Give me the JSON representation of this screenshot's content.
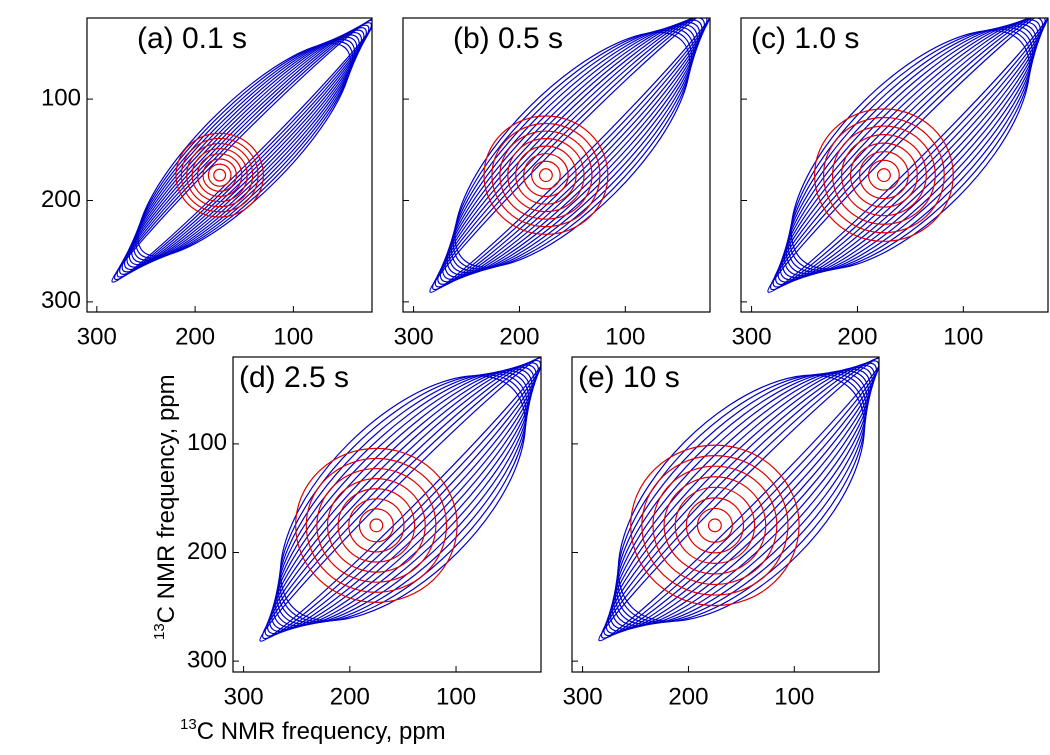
{
  "chart_data": [
    {
      "type": "contour",
      "title": "(a) 0.1 s",
      "xlim": [
        310,
        20
      ],
      "ylim": [
        20,
        310
      ],
      "xticks": [
        300,
        200,
        100
      ],
      "yticks": [
        100,
        200,
        300
      ],
      "ytick_labels": true,
      "colors": [
        "#0000cc",
        "#e00000"
      ]
    },
    {
      "type": "contour",
      "title": "(b) 0.5 s",
      "xlim": [
        310,
        20
      ],
      "ylim": [
        20,
        310
      ],
      "xticks": [
        300,
        200,
        100
      ],
      "yticks": [
        100,
        200,
        300
      ],
      "ytick_labels": false,
      "colors": [
        "#0000cc",
        "#e00000"
      ]
    },
    {
      "type": "contour",
      "title": "(c) 1.0 s",
      "xlim": [
        310,
        20
      ],
      "ylim": [
        20,
        310
      ],
      "xticks": [
        300,
        200,
        100
      ],
      "yticks": [
        100,
        200,
        300
      ],
      "ytick_labels": false,
      "colors": [
        "#0000cc",
        "#e00000"
      ]
    },
    {
      "type": "contour",
      "title": "(d) 2.5 s",
      "xlim": [
        310,
        20
      ],
      "ylim": [
        20,
        310
      ],
      "xticks": [
        300,
        200,
        100
      ],
      "yticks": [
        100,
        200,
        300
      ],
      "ytick_labels": true,
      "colors": [
        "#0000cc",
        "#e00000"
      ],
      "xlabel_sup": "13",
      "xlabel": "C NMR frequency, ppm",
      "ylabel_sup": "13",
      "ylabel": "C NMR frequency, ppm"
    },
    {
      "type": "contour",
      "title": "(e) 10 s",
      "xlim": [
        310,
        20
      ],
      "ylim": [
        20,
        310
      ],
      "xticks": [
        300,
        200,
        100
      ],
      "yticks": [
        100,
        200,
        300
      ],
      "ytick_labels": false,
      "colors": [
        "#0000cc",
        "#e00000"
      ]
    }
  ]
}
